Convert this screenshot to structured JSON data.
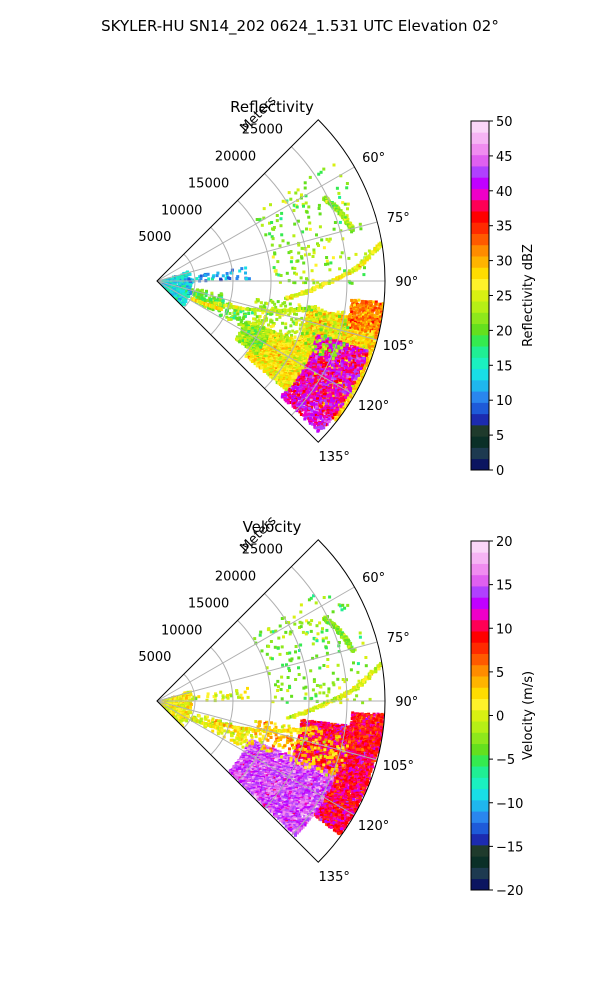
{
  "figure": {
    "title": "SKYLER-HU  SN14_202  0624_1.531 UTC Elevation 02°"
  },
  "chart_data": [
    {
      "type": "heatmap",
      "projection": "polar-sector",
      "title": "Reflectivity",
      "range_label": "Meters",
      "range_limits": [
        0,
        30000
      ],
      "radial_ticks": [
        5000,
        10000,
        15000,
        20000,
        25000
      ],
      "radial_tick_labels": [
        "5000",
        "10000",
        "15000",
        "20000",
        "25000"
      ],
      "azimuth_limits_deg": [
        45,
        135
      ],
      "azimuth_ticks": [
        60,
        75,
        90,
        105,
        120,
        135
      ],
      "azimuth_tick_labels": [
        "60°",
        "75°",
        "90°",
        "105°",
        "120°",
        "135°"
      ],
      "grid": true,
      "colorbar": {
        "label": "Reflectivity dBZ",
        "range": [
          0,
          50
        ],
        "ticks": [
          0,
          5,
          10,
          15,
          20,
          25,
          30,
          35,
          40,
          45,
          50
        ],
        "tick_labels": [
          "0",
          "5",
          "10",
          "15",
          "20",
          "25",
          "30",
          "35",
          "40",
          "45",
          "50"
        ],
        "colors": [
          "#0b1560",
          "#1d3a50",
          "#0a2f27",
          "#1f3a2c",
          "#1c2bb0",
          "#1e5ad8",
          "#2a86ee",
          "#1fb6ee",
          "#19dfe6",
          "#1bf0c0",
          "#20ee94",
          "#35ea50",
          "#64e01e",
          "#8ee81c",
          "#b6ef16",
          "#d8f012",
          "#fff22a",
          "#ffdc00",
          "#ffb400",
          "#ff8c00",
          "#ff5a00",
          "#ff2a00",
          "#ff0000",
          "#ff0055",
          "#ee00c8",
          "#c000ff",
          "#b040ff",
          "#e060f0",
          "#f08cf0",
          "#f6b4f4",
          "#fad6f8"
        ]
      },
      "regions": [
        {
          "az": [
            100,
            128
          ],
          "r": [
            20000,
            29500
          ],
          "value": 28,
          "density": 0.96
        },
        {
          "az": [
            108,
            133
          ],
          "r": [
            22000,
            29000
          ],
          "value": 40,
          "density": 0.65
        },
        {
          "az": [
            113,
            130
          ],
          "r": [
            15000,
            22000
          ],
          "value": 27,
          "density": 0.88
        },
        {
          "az": [
            114,
            126
          ],
          "r": [
            12500,
            16000
          ],
          "value": 22,
          "density": 0.65
        },
        {
          "az": [
            95,
            103
          ],
          "r": [
            25500,
            29800
          ],
          "value": 32,
          "density": 0.8
        },
        {
          "az": [
            99,
            114
          ],
          "r": [
            13000,
            25500
          ],
          "value": 23,
          "density": 0.14
        },
        {
          "az": [
            106,
            118
          ],
          "r": [
            5000,
            13000
          ],
          "value": 21,
          "density": 0.15
        },
        {
          "az": [
            100,
            110
          ],
          "r": [
            2000,
            9000
          ],
          "value": 20,
          "density": 0.1
        },
        {
          "az": [
            70,
            135
          ],
          "r": [
            300,
            4200
          ],
          "value": 14,
          "density": 0.16
        },
        {
          "az": [
            80,
            88
          ],
          "r": [
            4000,
            12000
          ],
          "value": 11,
          "density": 0.07
        },
        {
          "az": [
            55,
            90
          ],
          "r": [
            15000,
            28000
          ],
          "value": 22,
          "density": 0.035
        }
      ],
      "lines": [
        {
          "points": [
            [
              110,
              8000
            ],
            [
              104,
              15500
            ],
            [
              99,
              21000
            ]
          ],
          "value": 24
        },
        {
          "points": [
            [
              97,
              17000
            ],
            [
              91,
              21500
            ],
            [
              86,
              26000
            ],
            [
              80,
              29800
            ]
          ],
          "value": 26
        },
        {
          "points": [
            [
              63,
              24500
            ],
            [
              68,
              25500
            ],
            [
              75,
              26500
            ]
          ],
          "value": 22
        },
        {
          "points": [
            [
              116,
              5000
            ],
            [
              113,
              9000
            ]
          ],
          "value": 28
        }
      ]
    },
    {
      "type": "heatmap",
      "projection": "polar-sector",
      "title": "Velocity",
      "range_label": "Meters",
      "range_limits": [
        0,
        30000
      ],
      "radial_ticks": [
        5000,
        10000,
        15000,
        20000,
        25000
      ],
      "radial_tick_labels": [
        "5000",
        "10000",
        "15000",
        "20000",
        "25000"
      ],
      "azimuth_limits_deg": [
        45,
        135
      ],
      "azimuth_ticks": [
        60,
        75,
        90,
        105,
        120,
        135
      ],
      "azimuth_tick_labels": [
        "60°",
        "75°",
        "90°",
        "105°",
        "120°",
        "135°"
      ],
      "grid": true,
      "colorbar": {
        "label": "Velocity (m/s)",
        "range": [
          -20,
          20
        ],
        "ticks": [
          -20,
          -15,
          -10,
          -5,
          0,
          5,
          10,
          15,
          20
        ],
        "tick_labels": [
          "−20",
          "−15",
          "−10",
          "−5",
          "0",
          "5",
          "10",
          "15",
          "20"
        ],
        "colors": [
          "#0b1560",
          "#1d3a50",
          "#0a2f27",
          "#1f3a2c",
          "#1c2bb0",
          "#1e5ad8",
          "#2a86ee",
          "#1fb6ee",
          "#19dfe6",
          "#1bf0c0",
          "#20ee94",
          "#35ea50",
          "#64e01e",
          "#8ee81c",
          "#b6ef16",
          "#d8f012",
          "#fff22a",
          "#ffdc00",
          "#ffb400",
          "#ff8c00",
          "#ff5a00",
          "#ff2a00",
          "#ff0000",
          "#ff0055",
          "#ee00c8",
          "#c000ff",
          "#b040ff",
          "#e060f0",
          "#f08cf0",
          "#f6b4f4",
          "#fad6f8"
        ]
      },
      "regions": [
        {
          "az": [
            97,
            126
          ],
          "r": [
            19000,
            29500
          ],
          "value": 10,
          "density": 0.97
        },
        {
          "az": [
            112,
            134
          ],
          "r": [
            13000,
            25000
          ],
          "value": 15,
          "density": 0.93
        },
        {
          "az": [
            93,
            103
          ],
          "r": [
            25500,
            29800
          ],
          "value": 9,
          "density": 0.85
        },
        {
          "az": [
            100,
            114
          ],
          "r": [
            13000,
            25500
          ],
          "value": 3,
          "density": 0.12
        },
        {
          "az": [
            106,
            118
          ],
          "r": [
            5000,
            13000
          ],
          "value": 1,
          "density": 0.14
        },
        {
          "az": [
            70,
            135
          ],
          "r": [
            300,
            4200
          ],
          "value": 1,
          "density": 0.14
        },
        {
          "az": [
            80,
            88
          ],
          "r": [
            4000,
            12000
          ],
          "value": 0,
          "density": 0.06
        },
        {
          "az": [
            55,
            90
          ],
          "r": [
            15000,
            28000
          ],
          "value": -3,
          "density": 0.035
        }
      ],
      "lines": [
        {
          "points": [
            [
              110,
              8000
            ],
            [
              104,
              15500
            ],
            [
              99,
              21000
            ]
          ],
          "value": 2
        },
        {
          "points": [
            [
              97,
              17000
            ],
            [
              91,
              21500
            ],
            [
              86,
              26000
            ],
            [
              80,
              29800
            ]
          ],
          "value": 0
        },
        {
          "points": [
            [
              63,
              24500
            ],
            [
              68,
              25500
            ],
            [
              75,
              26500
            ]
          ],
          "value": -3
        },
        {
          "points": [
            [
              116,
              5000
            ],
            [
              113,
              9000
            ]
          ],
          "value": 1
        }
      ]
    }
  ]
}
